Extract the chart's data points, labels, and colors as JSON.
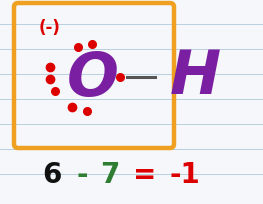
{
  "bg_color": "#f5f7fa",
  "line_color": "#b8cfe0",
  "box_color": "#f0a020",
  "charge_text": "(-)",
  "charge_color": "#dd0000",
  "O_color": "#7b1fa2",
  "H_color": "#7b1fa2",
  "dot_color": "#dd0000",
  "bond_color": "#555555",
  "eq_6_color": "#111111",
  "eq_minus_color": "#2e7d32",
  "eq_7_color": "#2e7d32",
  "eq_result_color": "#dd0000"
}
